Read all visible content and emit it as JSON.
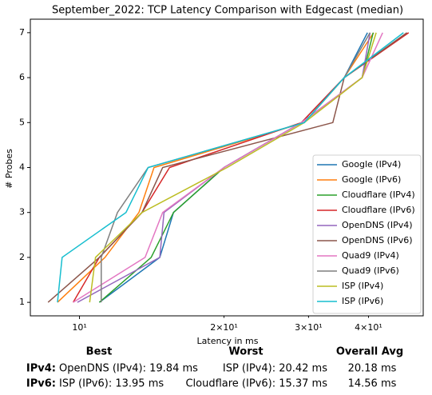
{
  "chart_data": {
    "type": "line",
    "title": "September_2022: TCP Latency Comparison with Edgecast (median)",
    "x_label": "Latency in ms",
    "y_label": "# Probes",
    "xscale": "log",
    "legend": "lower right",
    "xlim": [
      7.9,
      52
    ],
    "ylim": [
      0.7,
      7.3
    ],
    "xticks": [
      {
        "value": 10,
        "label": "10¹"
      },
      {
        "value": 20,
        "label": "2×10¹"
      },
      {
        "value": 30,
        "label": "3×10¹"
      },
      {
        "value": 40,
        "label": "4×10¹"
      }
    ],
    "yticks": [
      1,
      2,
      3,
      4,
      5,
      6,
      7
    ],
    "series": [
      {
        "name": "Google (IPv4)",
        "color": "#1f77b4",
        "x": [
          11.0,
          14.7,
          15.7,
          20,
          29,
          35.6,
          39.8
        ],
        "values": [
          1,
          2,
          3,
          4,
          5,
          6,
          7
        ]
      },
      {
        "name": "Google (IPv6)",
        "color": "#ff7f0e",
        "x": [
          9.0,
          11.3,
          13.3,
          14.3,
          29.4,
          35.6,
          41.0
        ],
        "values": [
          1,
          2,
          3,
          4,
          5,
          6,
          7
        ]
      },
      {
        "name": "Cloudflare (IPv4)",
        "color": "#2ca02c",
        "x": [
          11.0,
          14.1,
          15.7,
          20,
          29,
          38.8,
          40.9
        ],
        "values": [
          1,
          2,
          3,
          4,
          5,
          6,
          7
        ]
      },
      {
        "name": "Cloudflare (IPv6)",
        "color": "#d62728",
        "x": [
          9.7,
          11.0,
          13.5,
          15.4,
          29.0,
          35.6,
          48.5
        ],
        "values": [
          1,
          2,
          3,
          4,
          5,
          6,
          7
        ]
      },
      {
        "name": "OpenDNS (IPv4)",
        "color": "#9467bd",
        "x": [
          9.9,
          14.7,
          15.0,
          20,
          29,
          38.8,
          40.3
        ],
        "values": [
          1,
          2,
          3,
          4,
          5,
          6,
          7
        ]
      },
      {
        "name": "OpenDNS (IPv6)",
        "color": "#8c564b",
        "x": [
          8.6,
          11.0,
          13.5,
          14.9,
          33.7,
          35.6,
          48.1
        ],
        "values": [
          1,
          2,
          3,
          4,
          5,
          6,
          7
        ]
      },
      {
        "name": "Quad9 (IPv4)",
        "color": "#e377c2",
        "x": [
          9.7,
          13.7,
          14.9,
          20,
          29,
          38.8,
          42.8
        ],
        "values": [
          1,
          2,
          3,
          4,
          5,
          6,
          7
        ]
      },
      {
        "name": "Quad9 (IPv6)",
        "color": "#7f7f7f",
        "x": [
          11.1,
          11.1,
          12.0,
          13.9,
          29.4,
          35.6,
          40.3
        ],
        "values": [
          1,
          2,
          3,
          4,
          5,
          6,
          7
        ]
      },
      {
        "name": "ISP (IPv4)",
        "color": "#bcbd22",
        "x": [
          10.5,
          10.8,
          13.5,
          20.3,
          29.4,
          38.8,
          41.5
        ],
        "values": [
          1,
          2,
          3,
          4,
          5,
          6,
          7
        ]
      },
      {
        "name": "ISP (IPv6)",
        "color": "#17becf",
        "x": [
          9.0,
          9.2,
          12.5,
          13.9,
          29.4,
          35.6,
          47.3
        ],
        "values": [
          1,
          2,
          3,
          4,
          5,
          6,
          7
        ]
      }
    ]
  },
  "table": {
    "headers": [
      "Best",
      "Worst",
      "Overall Avg"
    ],
    "rows": [
      [
        "IPv4:",
        "OpenDNS (IPv4): 19.84 ms",
        "ISP (IPv4): 20.42 ms",
        "20.18 ms"
      ],
      [
        "IPv6:",
        "ISP (IPv6): 13.95 ms",
        "Cloudflare (IPv6): 15.37 ms",
        "14.56 ms"
      ]
    ]
  }
}
